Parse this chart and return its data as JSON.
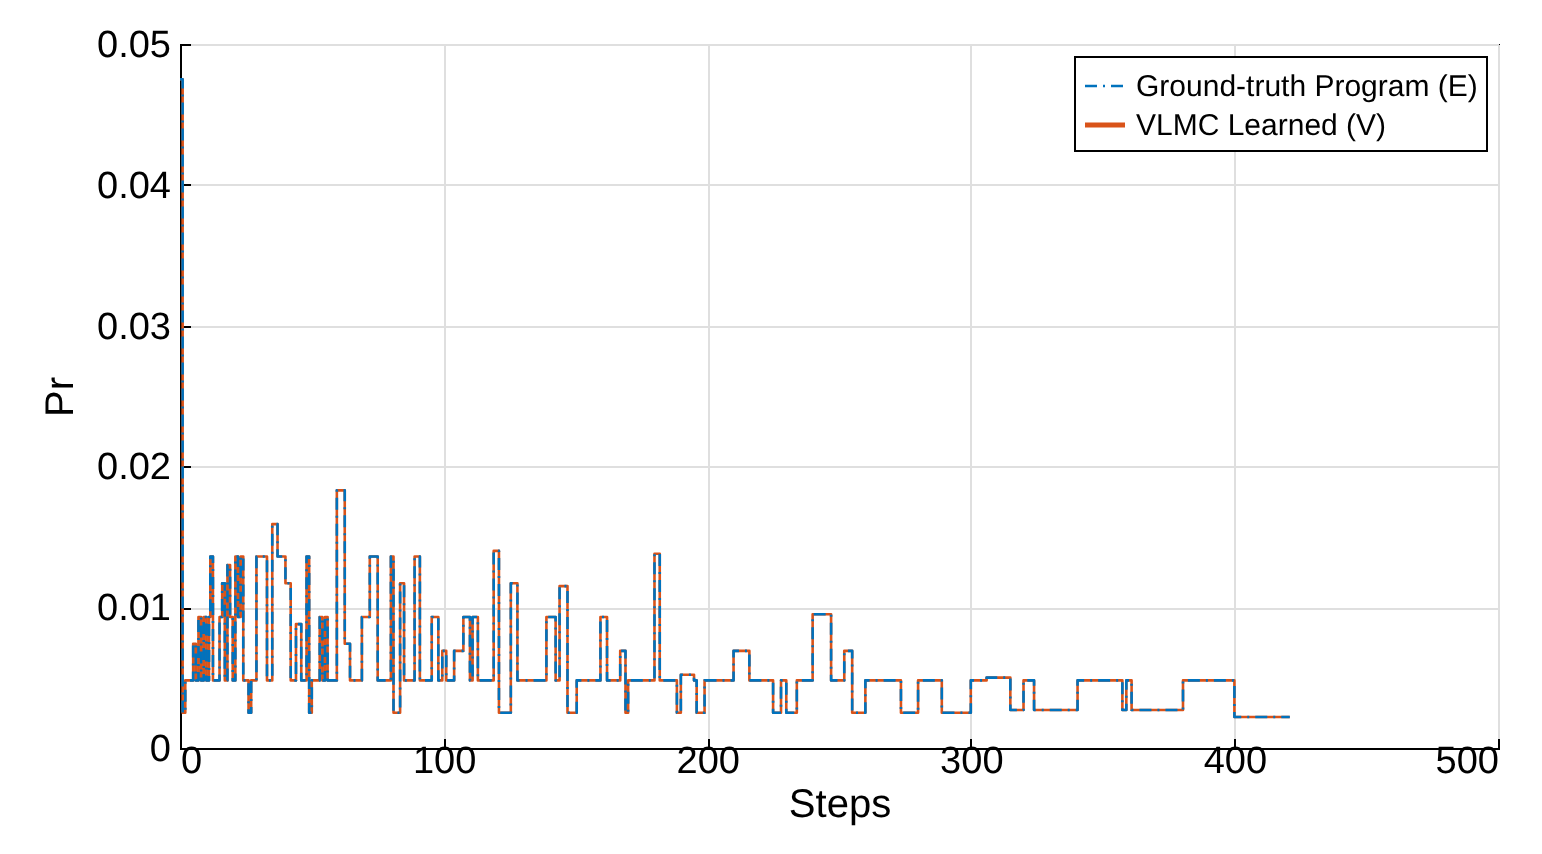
{
  "chart_data": {
    "type": "step",
    "xlabel": "Steps",
    "ylabel": "Pr",
    "xlim": [
      0,
      500
    ],
    "xticks": [
      0,
      100,
      200,
      300,
      400,
      500
    ],
    "ylim": [
      0,
      0.05
    ],
    "yticks": [
      0,
      0.01,
      0.02,
      0.03,
      0.04,
      0.05
    ],
    "grid": true,
    "legend": "top right",
    "x": [
      0,
      1,
      2,
      5,
      6,
      7,
      8,
      9,
      10,
      11,
      11.5,
      12.5,
      15,
      16,
      17,
      18,
      19,
      20,
      21,
      22,
      23,
      24,
      26,
      27,
      29,
      33,
      35,
      37,
      40,
      42,
      44,
      46,
      48,
      49,
      50,
      53,
      54,
      55,
      56,
      59.5,
      62.5,
      64.5,
      69,
      72,
      75,
      80,
      81,
      83.5,
      85,
      89,
      91,
      95.5,
      98,
      99.5,
      101,
      104,
      107.5,
      110,
      111,
      113,
      119,
      121,
      125.5,
      128,
      139,
      142.5,
      144,
      147,
      150.5,
      159.5,
      162,
      167,
      169,
      170,
      180,
      182,
      188.5,
      190,
      195,
      196,
      199,
      210,
      216,
      225,
      228,
      230,
      234,
      240,
      247,
      252,
      255,
      260,
      273.5,
      280,
      289,
      300,
      306,
      315,
      320,
      324,
      340.5,
      357.5,
      359,
      361,
      380.5,
      400,
      421
    ],
    "series": [
      {
        "name": "Ground-truth Program (E)",
        "color": "#0072bd",
        "line_style": "dashed",
        "values": [
          0.0475,
          0.0025,
          0.0048,
          0.0074,
          0.0048,
          0.0093,
          0.0048,
          0.0093,
          0.0048,
          0.0093,
          0.0136,
          0.0048,
          0.0093,
          0.0117,
          0.0048,
          0.013,
          0.0093,
          0.0048,
          0.0136,
          0.0093,
          0.0136,
          0.0048,
          0.0025,
          0.0048,
          0.0136,
          0.0048,
          0.0159,
          0.0136,
          0.0117,
          0.0048,
          0.0088,
          0.0048,
          0.0136,
          0.0025,
          0.0048,
          0.0093,
          0.0048,
          0.0093,
          0.0048,
          0.0183,
          0.0074,
          0.0048,
          0.0093,
          0.0136,
          0.0048,
          0.0136,
          0.0025,
          0.0117,
          0.0048,
          0.0136,
          0.0048,
          0.0093,
          0.0048,
          0.0069,
          0.0048,
          0.0069,
          0.0093,
          0.0048,
          0.0093,
          0.0048,
          0.014,
          0.0025,
          0.0117,
          0.0048,
          0.0093,
          0.0048,
          0.0115,
          0.0025,
          0.0048,
          0.0093,
          0.0048,
          0.0069,
          0.0025,
          0.0048,
          0.0138,
          0.0048,
          0.0025,
          0.0052,
          0.0048,
          0.0025,
          0.0048,
          0.0069,
          0.0048,
          0.0025,
          0.0048,
          0.0025,
          0.0048,
          0.0095,
          0.0048,
          0.0069,
          0.0025,
          0.0048,
          0.0025,
          0.0048,
          0.0025,
          0.0048,
          0.005,
          0.0027,
          0.0048,
          0.0027,
          0.0048,
          0.0027,
          0.0048,
          0.0027,
          0.0048,
          0.0022,
          0.0022
        ]
      },
      {
        "name": "VLMC Learned (V)",
        "color": "#d95319",
        "line_style": "solid",
        "values": [
          0.0475,
          0.0025,
          0.0048,
          0.0074,
          0.0048,
          0.0093,
          0.0048,
          0.0093,
          0.0048,
          0.0093,
          0.0136,
          0.0048,
          0.0093,
          0.0117,
          0.0048,
          0.013,
          0.0093,
          0.0048,
          0.0136,
          0.0093,
          0.0136,
          0.0048,
          0.0025,
          0.0048,
          0.0136,
          0.0048,
          0.0159,
          0.0136,
          0.0117,
          0.0048,
          0.0088,
          0.0048,
          0.0136,
          0.0025,
          0.0048,
          0.0093,
          0.0048,
          0.0093,
          0.0048,
          0.0183,
          0.0074,
          0.0048,
          0.0093,
          0.0136,
          0.0048,
          0.0136,
          0.0025,
          0.0117,
          0.0048,
          0.0136,
          0.0048,
          0.0093,
          0.0048,
          0.0069,
          0.0048,
          0.0069,
          0.0093,
          0.0048,
          0.0093,
          0.0048,
          0.014,
          0.0025,
          0.0117,
          0.0048,
          0.0093,
          0.0048,
          0.0115,
          0.0025,
          0.0048,
          0.0093,
          0.0048,
          0.0069,
          0.0025,
          0.0048,
          0.0138,
          0.0048,
          0.0025,
          0.0052,
          0.0048,
          0.0025,
          0.0048,
          0.0069,
          0.0048,
          0.0025,
          0.0048,
          0.0025,
          0.0048,
          0.0095,
          0.0048,
          0.0069,
          0.0025,
          0.0048,
          0.0025,
          0.0048,
          0.0025,
          0.0048,
          0.005,
          0.0027,
          0.0048,
          0.0027,
          0.0048,
          0.0027,
          0.0048,
          0.0027,
          0.0048,
          0.0022,
          0.0022
        ]
      }
    ]
  }
}
